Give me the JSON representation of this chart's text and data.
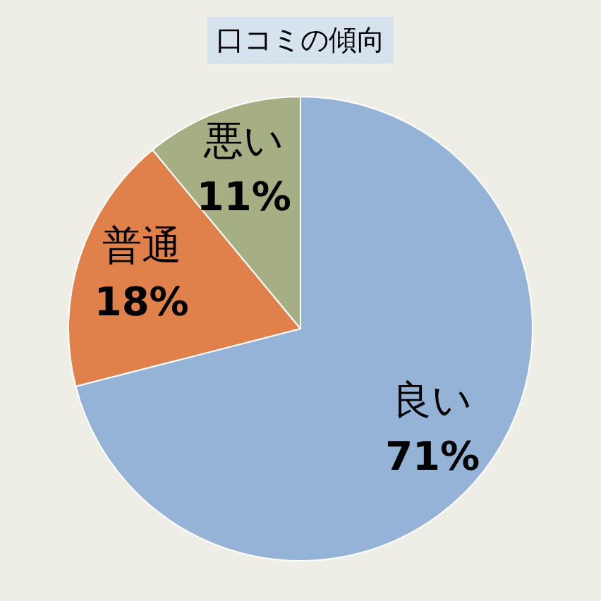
{
  "chart_data": {
    "type": "pie",
    "title": "口コミの傾向",
    "categories": [
      "良い",
      "普通",
      "悪い"
    ],
    "values": [
      71,
      18,
      11
    ],
    "colors": [
      "#95b3d7",
      "#e0804a",
      "#a6ae84"
    ],
    "value_labels": [
      "71%",
      "18%",
      "11%"
    ]
  }
}
